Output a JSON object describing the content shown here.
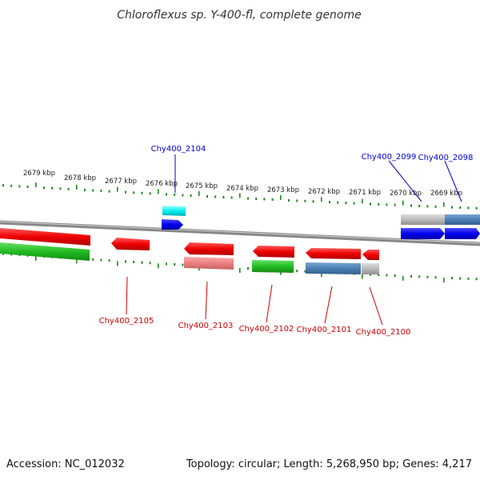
{
  "title": "Chloroflexus sp. Y-400-fl, complete genome",
  "footer": {
    "accession": "Accession: NC_012032",
    "summary": "Topology: circular; Length: 5,268,950 bp; Genes: 4,217"
  },
  "colors": {
    "backbone": "#888888",
    "tick_green": "#1e8a1e",
    "label_blue": "#0000cc",
    "label_red": "#cc0000"
  },
  "kbp_labels": [
    "2679 kbp",
    "2678 kbp",
    "2677 kbp",
    "2676 kbp",
    "2675 kbp",
    "2674 kbp",
    "2673 kbp",
    "2672 kbp",
    "2671 kbp",
    "2670 kbp",
    "2669 kbp"
  ],
  "gene_labels": [
    {
      "text": "Chy400_2104",
      "color": "blue"
    },
    {
      "text": "Chy400_2099",
      "color": "blue"
    },
    {
      "text": "Chy400_2098",
      "color": "blue"
    },
    {
      "text": "Chy400_2105",
      "color": "red"
    },
    {
      "text": "Chy400_2103",
      "color": "red"
    },
    {
      "text": "Chy400_2102",
      "color": "red"
    },
    {
      "text": "Chy400_2101",
      "color": "red"
    },
    {
      "text": "Chy400_2100",
      "color": "red"
    }
  ]
}
